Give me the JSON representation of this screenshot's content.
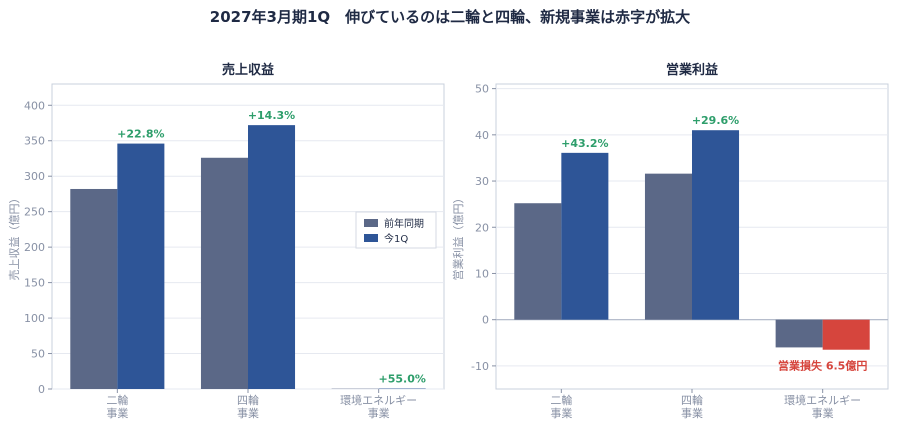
{
  "suptitle": "2027年3月期1Q　伸びているのは二輪と四輪、新規事業は赤字が拡大",
  "colors": {
    "prev": "#5b6887",
    "curr": "#2e5597",
    "loss": "#d6453d",
    "growth": "#2e9e6b",
    "loss_label": "#d6453d",
    "axis": "#8891a5",
    "grid": "#e6e9f0",
    "frame": "#c9d0dc"
  },
  "chart_data": [
    {
      "type": "bar",
      "title": "売上収益",
      "ylabel": "売上収益（億円）",
      "ylim": [
        0,
        430
      ],
      "yticks": [
        0,
        50,
        100,
        150,
        200,
        250,
        300,
        350,
        400
      ],
      "categories": [
        [
          "二輪",
          "事業"
        ],
        [
          "四輪",
          "事業"
        ],
        [
          "環境エネルギー",
          "事業"
        ]
      ],
      "legend": {
        "position": "center-right",
        "entries": [
          "前年同期",
          "今1Q"
        ]
      },
      "series": [
        {
          "name": "前年同期",
          "values": [
            282,
            326,
            0.4
          ]
        },
        {
          "name": "今1Q",
          "values": [
            346,
            372,
            0.6
          ]
        }
      ],
      "annotations": [
        "+22.8%",
        "+14.3%",
        "+55.0%"
      ]
    },
    {
      "type": "bar",
      "title": "営業利益",
      "ylabel": "営業利益（億円）",
      "ylim": [
        -15,
        51
      ],
      "yticks": [
        -10,
        0,
        10,
        20,
        30,
        40,
        50
      ],
      "categories": [
        [
          "二輪",
          "事業"
        ],
        [
          "四輪",
          "事業"
        ],
        [
          "環境エネルギー",
          "事業"
        ]
      ],
      "series": [
        {
          "name": "前年同期",
          "values": [
            25.2,
            31.6,
            -6.0
          ]
        },
        {
          "name": "今1Q",
          "values": [
            36.1,
            41.0,
            -6.5
          ]
        }
      ],
      "annotations": [
        "+43.2%",
        "+29.6%"
      ],
      "loss_annotation": "営業損失 6.5億円"
    }
  ]
}
